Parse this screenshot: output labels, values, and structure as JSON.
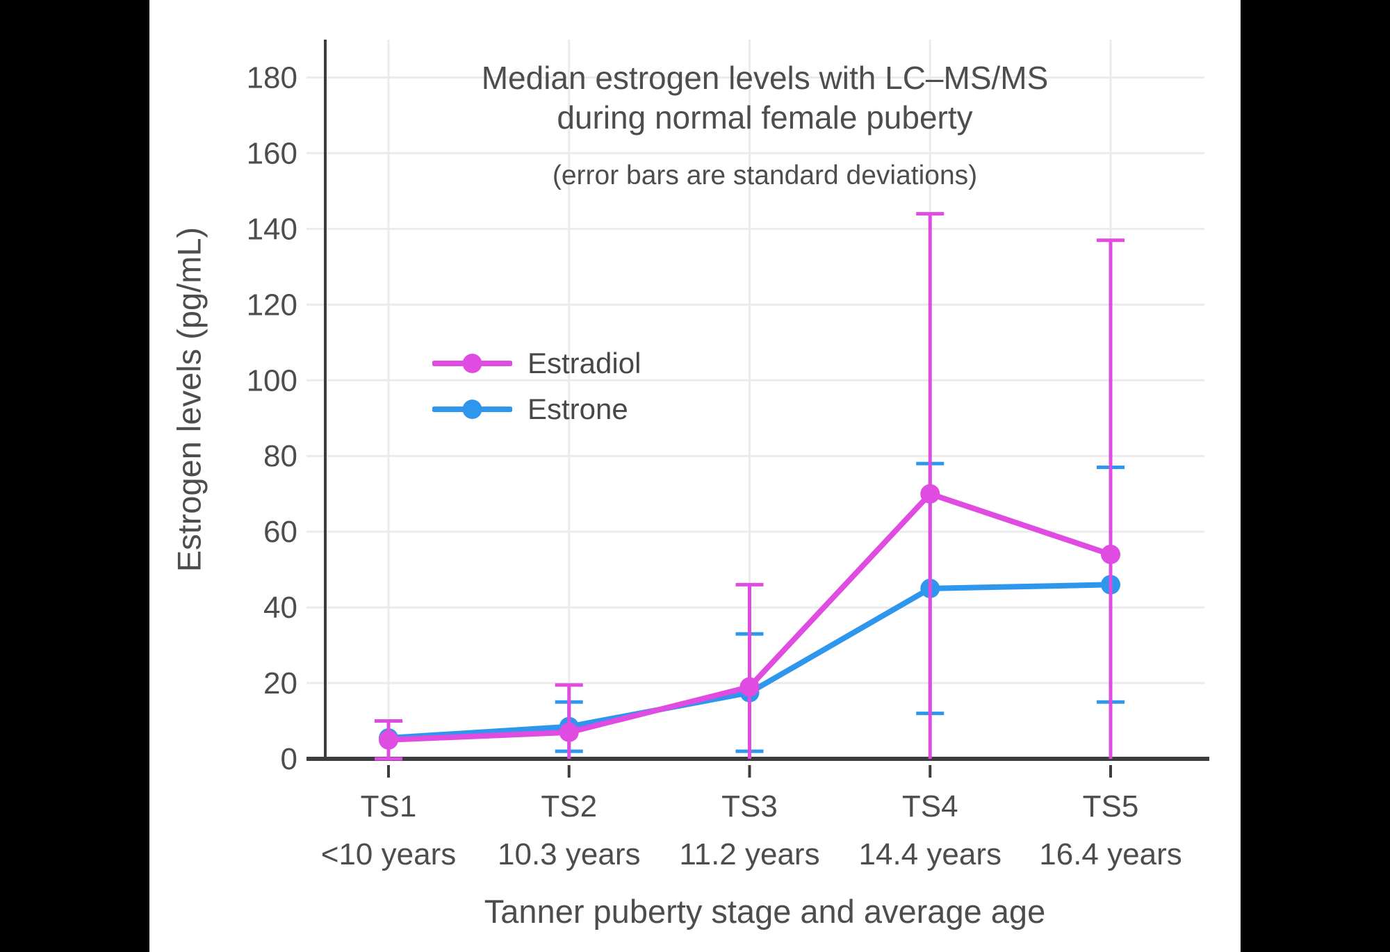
{
  "letterbox_color": "#000000",
  "panel_color": "#ffffff",
  "chart_data": {
    "type": "line",
    "title": "Median estrogen levels with LC–MS/MS",
    "title_line2": "during normal female puberty",
    "subtitle": "(error bars are standard deviations)",
    "xlabel": "Tanner puberty stage and average age",
    "ylabel": "Estrogen levels (pg/mL)",
    "categories": [
      "TS1",
      "TS2",
      "TS3",
      "TS4",
      "TS5"
    ],
    "category_sublabels": [
      "<10 years",
      "10.3 years",
      "11.2 years",
      "14.4 years",
      "16.4 years"
    ],
    "yticks": [
      0,
      20,
      40,
      60,
      80,
      100,
      120,
      140,
      160,
      180
    ],
    "ylim": [
      0,
      190
    ],
    "grid": true,
    "error_bars": "standard deviations, clipped at 0",
    "legend_position": "inside upper-left of plot",
    "series": [
      {
        "name": "Estradiol",
        "color": "#E04CE2",
        "values": [
          5,
          7,
          19,
          70,
          54
        ],
        "sd": [
          5,
          12.5,
          27,
          74,
          83
        ]
      },
      {
        "name": "Estrone",
        "color": "#2E96EC",
        "values": [
          5.5,
          8.5,
          17.5,
          45,
          46
        ],
        "sd": [
          null,
          6.5,
          15.5,
          33,
          31
        ]
      }
    ]
  }
}
